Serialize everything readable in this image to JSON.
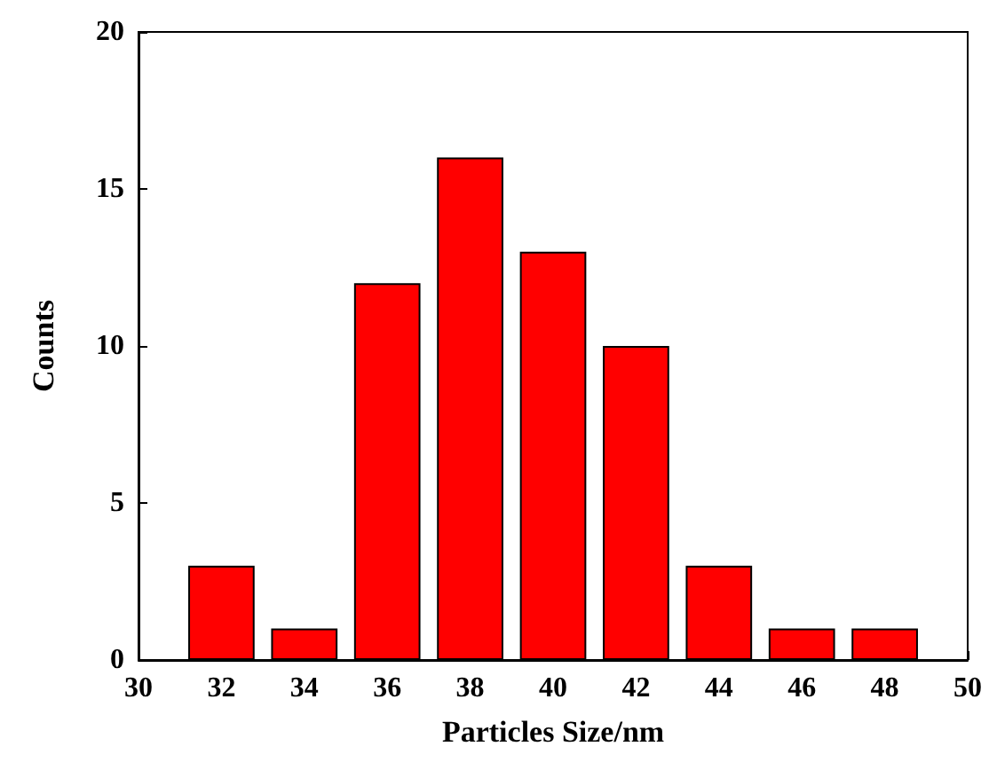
{
  "chart_data": {
    "type": "bar",
    "xlabel": "Particles Size/nm",
    "ylabel": "Counts",
    "x": [
      32,
      34,
      36,
      38,
      40,
      42,
      44,
      46,
      48
    ],
    "values": [
      3,
      1,
      12,
      16,
      13,
      10,
      3,
      1,
      1
    ],
    "color": "#ff0000",
    "xlim": [
      30,
      50
    ],
    "xticks": [
      30,
      32,
      34,
      36,
      38,
      40,
      42,
      44,
      46,
      48,
      50
    ],
    "ylim": [
      0,
      20
    ],
    "yticks": [
      0,
      5,
      10,
      15,
      20
    ],
    "grid": false
  }
}
